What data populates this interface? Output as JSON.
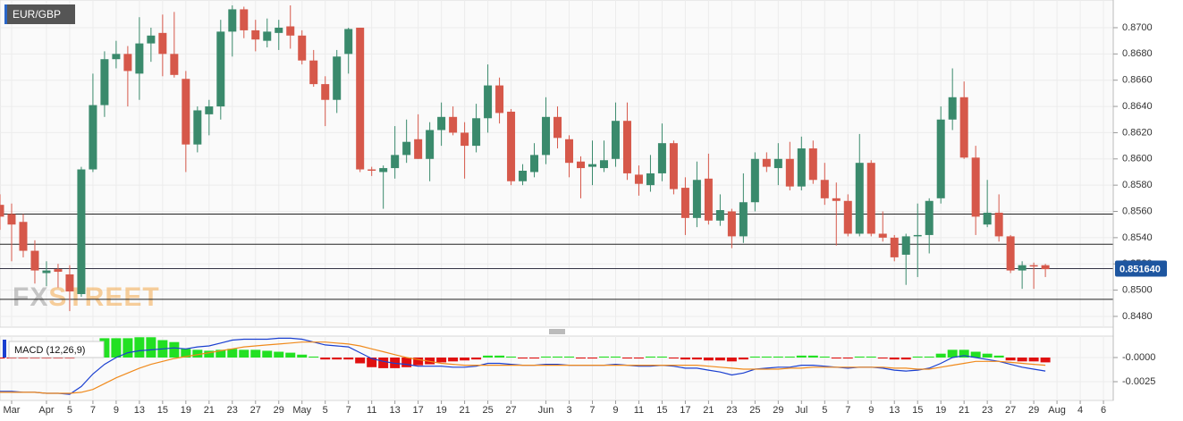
{
  "chart_data": [
    {
      "type": "candlestick",
      "title": "EUR/GBP",
      "watermark": [
        "FX",
        "STREET"
      ],
      "categories": [
        null,
        "Mar",
        null,
        null,
        "Apr",
        null,
        "5",
        null,
        "7",
        null,
        "9",
        null,
        "13",
        null,
        "15",
        null,
        "19",
        null,
        "21",
        null,
        "23",
        null,
        "27",
        null,
        "29",
        null,
        "May",
        null,
        "5",
        null,
        "7",
        null,
        "11",
        null,
        "13",
        null,
        "17",
        null,
        "19",
        null,
        "21",
        null,
        "25",
        null,
        "27",
        null,
        null,
        "Jun",
        null,
        "3",
        null,
        "7",
        null,
        "9",
        null,
        "11",
        null,
        "15",
        null,
        "17",
        null,
        "21",
        null,
        "23",
        null,
        "25",
        null,
        "29",
        null,
        "Jul",
        null,
        "5",
        null,
        "7",
        null,
        "9",
        null,
        "13",
        null,
        "15",
        null,
        "19",
        null,
        "21",
        null,
        "23",
        null,
        "27",
        null,
        "29",
        null,
        "Aug",
        null,
        "4",
        null,
        "6"
      ],
      "open": [
        0.8565,
        0.8558,
        0.8552,
        0.853,
        0.8513,
        0.8516,
        0.8512,
        0.8497,
        0.8592,
        0.8641,
        0.8676,
        0.868,
        0.8665,
        0.8688,
        0.8696,
        0.868,
        0.8661,
        0.8611,
        0.8634,
        0.864,
        0.8697,
        0.8714,
        0.8698,
        0.869,
        0.8696,
        0.8701,
        0.8694,
        0.8675,
        0.8657,
        0.8645,
        0.868,
        0.87,
        0.8592,
        0.859,
        0.8593,
        0.8603,
        0.8615,
        0.86,
        0.8622,
        0.8632,
        0.862,
        0.861,
        0.8631,
        0.8656,
        0.8636,
        0.8583,
        0.859,
        0.8603,
        0.8632,
        0.8615,
        0.8598,
        0.8594,
        0.8593,
        0.86,
        0.8629,
        0.8588,
        0.858,
        0.8589,
        0.8612,
        0.8578,
        0.8555,
        0.8585,
        0.8553,
        0.856,
        0.8541,
        0.8567,
        0.86,
        0.8593,
        0.86,
        0.8579,
        0.8608,
        0.8584,
        0.857,
        0.8568,
        0.8543,
        0.8597,
        0.8543,
        0.854,
        0.8527,
        0.8541,
        0.8542,
        0.857,
        0.863,
        0.8647,
        0.8601,
        0.855,
        0.8559,
        0.8541,
        0.8515,
        0.8519,
        0.8519,
        null,
        null,
        null,
        null,
        null
      ],
      "high": [
        0.8573,
        0.8566,
        0.8558,
        0.8538,
        0.8522,
        0.852,
        0.8519,
        0.8594,
        0.8665,
        0.8682,
        0.869,
        0.8686,
        0.8708,
        0.87,
        0.871,
        0.8712,
        0.8667,
        0.864,
        0.8645,
        0.8706,
        0.8717,
        0.8716,
        0.8706,
        0.8707,
        0.8706,
        0.8717,
        0.8698,
        0.8683,
        0.8663,
        0.8683,
        0.87,
        0.87,
        0.8594,
        0.8595,
        0.8625,
        0.863,
        0.8634,
        0.8628,
        0.8643,
        0.864,
        0.8628,
        0.8642,
        0.8672,
        0.8662,
        0.8638,
        0.8596,
        0.8612,
        0.8647,
        0.864,
        0.8618,
        0.8602,
        0.8614,
        0.8614,
        0.8643,
        0.8643,
        0.8595,
        0.8603,
        0.8627,
        0.8614,
        0.8586,
        0.8598,
        0.8604,
        0.8573,
        0.8562,
        0.8589,
        0.8605,
        0.8605,
        0.8612,
        0.8613,
        0.8617,
        0.8614,
        0.8597,
        0.8582,
        0.8573,
        0.8619,
        0.8599,
        0.856,
        0.8542,
        0.8543,
        0.8566,
        0.857,
        0.864,
        0.8669,
        0.8659,
        0.861,
        0.8584,
        0.8573,
        0.8542,
        0.8522,
        0.8521,
        0.852,
        null,
        null,
        null,
        null,
        null
      ],
      "low": [
        0.8546,
        0.8522,
        0.8525,
        0.8505,
        0.8503,
        0.8502,
        0.8484,
        0.8495,
        0.859,
        0.8632,
        0.8669,
        0.864,
        0.8645,
        0.8674,
        0.8663,
        0.8662,
        0.859,
        0.8605,
        0.8618,
        0.863,
        0.8678,
        0.8692,
        0.8682,
        0.8685,
        0.8683,
        0.8684,
        0.8672,
        0.8655,
        0.8625,
        0.8635,
        0.8665,
        0.859,
        0.8587,
        0.8562,
        0.8585,
        0.8597,
        0.86,
        0.8583,
        0.861,
        0.8618,
        0.8585,
        0.8605,
        0.862,
        0.8627,
        0.858,
        0.858,
        0.8586,
        0.8596,
        0.8608,
        0.8586,
        0.857,
        0.858,
        0.859,
        0.8594,
        0.8584,
        0.8572,
        0.8575,
        0.8583,
        0.8573,
        0.8542,
        0.8548,
        0.855,
        0.8549,
        0.8532,
        0.8536,
        0.856,
        0.859,
        0.858,
        0.8576,
        0.8576,
        0.8581,
        0.8565,
        0.8534,
        0.8541,
        0.8541,
        0.8541,
        0.8537,
        0.8522,
        0.8504,
        0.851,
        0.8528,
        0.8566,
        0.8622,
        0.86,
        0.8542,
        0.8548,
        0.8537,
        0.8513,
        0.8501,
        0.8501,
        0.851,
        null,
        null,
        null,
        null,
        null
      ],
      "close": [
        0.8556,
        0.855,
        0.853,
        0.8515,
        0.8515,
        0.8514,
        0.8499,
        0.8592,
        0.8641,
        0.8676,
        0.868,
        0.8667,
        0.8688,
        0.8694,
        0.868,
        0.8664,
        0.8611,
        0.8637,
        0.864,
        0.8697,
        0.8714,
        0.8698,
        0.8691,
        0.8697,
        0.87,
        0.8694,
        0.8675,
        0.8657,
        0.8645,
        0.8678,
        0.8699,
        0.8592,
        0.8591,
        0.8593,
        0.8603,
        0.8613,
        0.86,
        0.8622,
        0.8632,
        0.862,
        0.861,
        0.8631,
        0.8656,
        0.8635,
        0.8583,
        0.8591,
        0.8603,
        0.8632,
        0.8616,
        0.8597,
        0.8593,
        0.8596,
        0.8599,
        0.8629,
        0.8589,
        0.8581,
        0.8589,
        0.8612,
        0.8577,
        0.8555,
        0.8584,
        0.8553,
        0.8561,
        0.8541,
        0.8567,
        0.86,
        0.8594,
        0.86,
        0.8579,
        0.8608,
        0.8584,
        0.857,
        0.8568,
        0.8543,
        0.8597,
        0.8543,
        0.854,
        0.8525,
        0.8541,
        0.8542,
        0.8568,
        0.863,
        0.8647,
        0.8601,
        0.8556,
        0.8559,
        0.8541,
        0.8515,
        0.8519,
        0.8518,
        0.8516,
        null,
        null,
        null,
        null,
        null
      ],
      "up_color": "#3a8a6c",
      "down_color": "#d6584a",
      "levels": [
        0.8558,
        0.8535,
        0.8493
      ],
      "last_price": {
        "value": 0.85164,
        "label": "0.851640"
      },
      "ylim": [
        0.84718,
        0.87211
      ],
      "yticks": [
        {
          "value": 0.848,
          "label": "0.8480"
        },
        {
          "value": 0.85,
          "label": "0.8500"
        },
        {
          "value": 0.852,
          "label": "0.8520"
        },
        {
          "value": 0.854,
          "label": "0.8540"
        },
        {
          "value": 0.856,
          "label": "0.8560"
        },
        {
          "value": 0.858,
          "label": "0.8580"
        },
        {
          "value": 0.86,
          "label": "0.8600"
        },
        {
          "value": 0.862,
          "label": "0.8620"
        },
        {
          "value": 0.864,
          "label": "0.8640"
        },
        {
          "value": 0.866,
          "label": "0.8660"
        },
        {
          "value": 0.868,
          "label": "0.8680"
        },
        {
          "value": 0.87,
          "label": "0.8700"
        }
      ],
      "grid": true
    },
    {
      "type": "macd",
      "title": "MACD (12,26,9)",
      "histogram": {
        "up_color": "#22e022",
        "down_color": "#e01010",
        "values": [
          -0.0001,
          -0.0001,
          -0.0001,
          -0.0001,
          -0.0001,
          -0.0001,
          -0.0001,
          0.0007,
          0.0016,
          0.002,
          0.002,
          0.002,
          0.0021,
          0.0021,
          0.0018,
          0.0016,
          0.0009,
          0.0008,
          0.0007,
          0.0008,
          0.0009,
          0.0008,
          0.0008,
          0.0007,
          0.0006,
          0.0005,
          0.0003,
          0.0001,
          -0.0002,
          -0.0002,
          -0.0002,
          -0.0006,
          -0.001,
          -0.0011,
          -0.0011,
          -0.001,
          -0.0008,
          -0.0007,
          -0.0005,
          -0.0004,
          -0.0003,
          -0.0002,
          0.0002,
          0.0002,
          0.0001,
          -0.0001,
          -0.0001,
          0.0001,
          0.0001,
          0.0001,
          -0.0001,
          -0.0001,
          0.0001,
          0.0001,
          -0.0001,
          -0.0001,
          0.0001,
          0.0001,
          -0.0001,
          -0.0002,
          -0.0002,
          -0.0003,
          -0.0003,
          -0.0004,
          -0.0002,
          0.0001,
          0.0001,
          0.0001,
          0.0001,
          0.0002,
          0.0002,
          0.0001,
          -0.0001,
          -0.0001,
          0.0001,
          0.0001,
          -0.0001,
          -0.0002,
          -0.0002,
          0.0001,
          0.0001,
          0.0004,
          0.0008,
          0.0008,
          0.0006,
          0.0004,
          0.0002,
          -0.0003,
          -0.0004,
          -0.0004,
          -0.0005
        ]
      },
      "series": [
        {
          "color": "#1a3fd0",
          "values": [
            -0.0035,
            -0.0035,
            -0.0036,
            -0.0036,
            -0.0037,
            -0.0037,
            -0.0038,
            -0.003,
            -0.0017,
            -0.0007,
            0,
            0.0005,
            0.0007,
            0.0008,
            0.0009,
            0.001,
            0.0009,
            0.0011,
            0.0012,
            0.0015,
            0.0018,
            0.0019,
            0.0019,
            0.0019,
            0.002,
            0.002,
            0.0019,
            0.0016,
            0.0013,
            0.0012,
            0.0011,
            0.0005,
            -0.0001,
            -0.0004,
            -0.0006,
            -0.0007,
            -0.0009,
            -0.0009,
            -0.0009,
            -0.001,
            -0.001,
            -0.0009,
            -0.0006,
            -0.0006,
            -0.0007,
            -0.0008,
            -0.0008,
            -0.0007,
            -0.0007,
            -0.0008,
            -0.0008,
            -0.0008,
            -0.0008,
            -0.0007,
            -0.0008,
            -0.0009,
            -0.0009,
            -0.0008,
            -0.0009,
            -0.0011,
            -0.0011,
            -0.0013,
            -0.0015,
            -0.0018,
            -0.0016,
            -0.0012,
            -0.0011,
            -0.001,
            -0.001,
            -0.0008,
            -0.0008,
            -0.0009,
            -0.001,
            -0.0011,
            -0.001,
            -0.001,
            -0.0011,
            -0.0013,
            -0.0014,
            -0.0013,
            -0.0011,
            -0.0006,
            0,
            0.0002,
            0,
            -0.0002,
            -0.0004,
            -0.0007,
            -0.001,
            -0.0012,
            -0.0014
          ]
        },
        {
          "color": "#f08a1c",
          "values": [
            -0.0036,
            -0.0036,
            -0.0036,
            -0.0036,
            -0.0037,
            -0.0037,
            -0.0037,
            -0.0036,
            -0.0033,
            -0.0027,
            -0.0021,
            -0.0016,
            -0.0011,
            -0.0007,
            -0.0004,
            -0.0001,
            0.0001,
            0.0003,
            0.0005,
            0.0007,
            0.0009,
            0.0011,
            0.0012,
            0.0013,
            0.0014,
            0.0015,
            0.0016,
            0.0016,
            0.0016,
            0.0015,
            0.0014,
            0.0012,
            0.0009,
            0.0006,
            0.0003,
            0,
            -0.0002,
            -0.0004,
            -0.0006,
            -0.0007,
            -0.0008,
            -0.0008,
            -0.0008,
            -0.0008,
            -0.0008,
            -0.0008,
            -0.0008,
            -0.0008,
            -0.0008,
            -0.0008,
            -0.0008,
            -0.0008,
            -0.0008,
            -0.0008,
            -0.0008,
            -0.0008,
            -0.0008,
            -0.0008,
            -0.0008,
            -0.0008,
            -0.0008,
            -0.0009,
            -0.001,
            -0.0011,
            -0.0012,
            -0.0012,
            -0.0012,
            -0.0012,
            -0.0011,
            -0.0011,
            -0.001,
            -0.001,
            -0.001,
            -0.001,
            -0.001,
            -0.001,
            -0.001,
            -0.0011,
            -0.0011,
            -0.0012,
            -0.0012,
            -0.001,
            -0.0008,
            -0.0006,
            -0.0004,
            -0.0004,
            -0.0004,
            -0.0005,
            -0.0006,
            -0.0007,
            -0.0008
          ]
        }
      ],
      "ylim": [
        -0.00444,
        0.00222
      ],
      "yticks": [
        {
          "value": 0,
          "label": "-0.0000"
        },
        {
          "value": -0.0025,
          "label": "-0.0025"
        }
      ],
      "grid": true
    }
  ]
}
